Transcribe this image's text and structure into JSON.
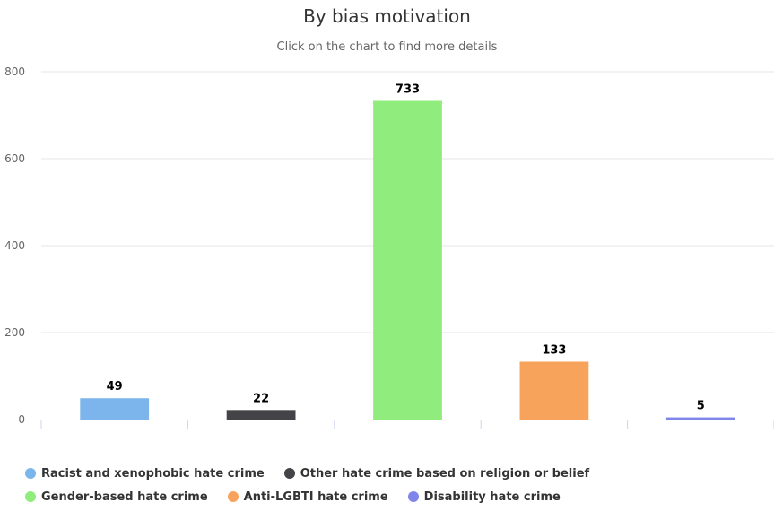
{
  "chart_data": {
    "type": "bar",
    "title": "By bias motivation",
    "subtitle": "Click on the chart to find more details",
    "categories": [
      "Racist and xenophobic hate crime",
      "Other hate crime based on religion or belief",
      "Gender-based hate crime",
      "Anti-LGBTI hate crime",
      "Disability hate crime"
    ],
    "values": [
      49,
      22,
      733,
      133,
      5
    ],
    "colors": [
      "#7cb5ec",
      "#434348",
      "#90ed7d",
      "#f7a35c",
      "#8085e9"
    ],
    "ylim": [
      0,
      800
    ],
    "yticks": [
      0,
      200,
      400,
      600,
      800
    ],
    "grid": true,
    "legend_position": "bottom"
  }
}
